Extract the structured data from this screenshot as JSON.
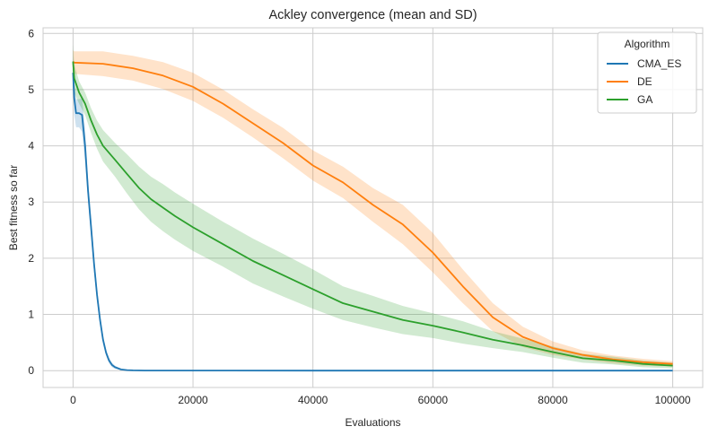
{
  "chart_data": {
    "type": "line",
    "title": "Ackley convergence (mean and SD)",
    "xlabel": "Evaluations",
    "ylabel": "Best fitness so far",
    "xlim": [
      -5000,
      105000
    ],
    "ylim": [
      -0.3,
      6.1
    ],
    "xticks": [
      0,
      20000,
      40000,
      60000,
      80000,
      100000
    ],
    "yticks": [
      0,
      1,
      2,
      3,
      4,
      5,
      6
    ],
    "grid": true,
    "legend": {
      "title": "Algorithm",
      "position": "top-right"
    },
    "series": [
      {
        "name": "CMA_ES",
        "color": "#1f77b4",
        "x": [
          0,
          200,
          500,
          1000,
          1500,
          2000,
          2500,
          3000,
          3500,
          4000,
          4500,
          5000,
          5500,
          6000,
          6500,
          7000,
          8000,
          9000,
          10000,
          12000,
          20000,
          40000,
          60000,
          80000,
          100000
        ],
        "mean": [
          5.3,
          4.85,
          4.58,
          4.58,
          4.55,
          4.0,
          3.2,
          2.55,
          1.9,
          1.35,
          0.9,
          0.55,
          0.32,
          0.18,
          0.1,
          0.06,
          0.02,
          0.01,
          0.005,
          0.002,
          0.001,
          0.0,
          0.0,
          0.0,
          0.0
        ],
        "sd": [
          0.3,
          0.3,
          0.25,
          0.25,
          0.3,
          0.3,
          0.2,
          0.18,
          0.15,
          0.12,
          0.1,
          0.08,
          0.06,
          0.05,
          0.04,
          0.03,
          0.01,
          0.005,
          0.003,
          0.001,
          0.0,
          0.0,
          0.0,
          0.0,
          0.0
        ]
      },
      {
        "name": "DE",
        "color": "#ff7f0e",
        "x": [
          0,
          200,
          5000,
          10000,
          15000,
          20000,
          25000,
          30000,
          35000,
          40000,
          45000,
          50000,
          55000,
          60000,
          65000,
          70000,
          75000,
          80000,
          85000,
          90000,
          95000,
          100000
        ],
        "mean": [
          5.5,
          5.48,
          5.46,
          5.38,
          5.25,
          5.05,
          4.75,
          4.4,
          4.05,
          3.65,
          3.35,
          2.95,
          2.6,
          2.1,
          1.5,
          0.95,
          0.6,
          0.4,
          0.28,
          0.2,
          0.15,
          0.12
        ],
        "sd": [
          0.2,
          0.2,
          0.22,
          0.22,
          0.24,
          0.25,
          0.25,
          0.25,
          0.27,
          0.27,
          0.28,
          0.3,
          0.35,
          0.35,
          0.3,
          0.25,
          0.18,
          0.12,
          0.08,
          0.07,
          0.06,
          0.05
        ]
      },
      {
        "name": "GA",
        "color": "#2ca02c",
        "x": [
          0,
          200,
          1000,
          2000,
          3000,
          4000,
          5000,
          7000,
          9000,
          11000,
          13000,
          15000,
          17000,
          20000,
          25000,
          30000,
          35000,
          40000,
          45000,
          50000,
          55000,
          60000,
          65000,
          70000,
          75000,
          80000,
          85000,
          90000,
          95000,
          100000
        ],
        "mean": [
          5.5,
          5.2,
          4.95,
          4.75,
          4.45,
          4.2,
          4.0,
          3.75,
          3.5,
          3.25,
          3.05,
          2.9,
          2.75,
          2.55,
          2.25,
          1.95,
          1.7,
          1.45,
          1.2,
          1.05,
          0.9,
          0.8,
          0.68,
          0.55,
          0.45,
          0.33,
          0.22,
          0.18,
          0.12,
          0.09
        ],
        "sd": [
          0.3,
          0.25,
          0.2,
          0.2,
          0.22,
          0.25,
          0.28,
          0.3,
          0.35,
          0.38,
          0.4,
          0.42,
          0.42,
          0.42,
          0.4,
          0.4,
          0.38,
          0.35,
          0.3,
          0.28,
          0.25,
          0.22,
          0.2,
          0.15,
          0.12,
          0.1,
          0.08,
          0.07,
          0.06,
          0.05
        ]
      }
    ]
  }
}
